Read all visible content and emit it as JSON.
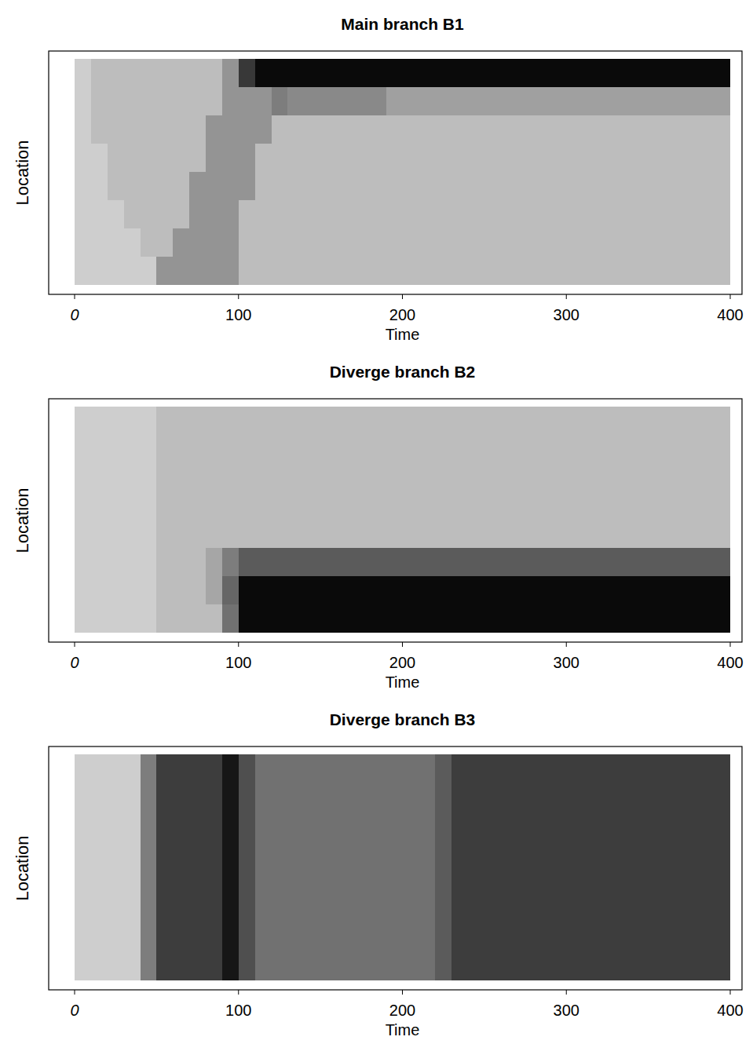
{
  "chart_data": [
    {
      "type": "heatmap",
      "title": "Main branch B1",
      "x_label": "Time",
      "y_label": "Location",
      "xlim": [
        0,
        400
      ],
      "xticks": [
        0,
        100,
        200,
        300,
        400
      ],
      "tick_labels": "x",
      "x": [
        0,
        10,
        20,
        30,
        40,
        50,
        60,
        70,
        80,
        90,
        100,
        110,
        120,
        130,
        140,
        150,
        160,
        170,
        180,
        190,
        200,
        210,
        220,
        230,
        240,
        250,
        260,
        270,
        280,
        290,
        300,
        310,
        320,
        330,
        340,
        350,
        360,
        370,
        380,
        390
      ],
      "cells": [
        [
          0.15,
          0.22,
          0.22,
          0.22,
          0.22,
          0.22,
          0.22,
          0.22,
          0.22,
          0.4,
          0.8,
          1,
          1,
          1,
          1,
          1,
          1,
          1,
          1,
          1,
          1,
          1,
          1,
          1,
          1,
          1,
          1,
          1,
          1,
          1,
          1,
          1,
          1,
          1,
          1,
          1,
          1,
          1,
          1,
          1
        ],
        [
          0.15,
          0.22,
          0.22,
          0.22,
          0.22,
          0.22,
          0.22,
          0.22,
          0.22,
          0.4,
          0.4,
          0.4,
          0.5,
          0.45,
          0.45,
          0.45,
          0.45,
          0.45,
          0.45,
          0.35,
          0.35,
          0.35,
          0.35,
          0.35,
          0.35,
          0.35,
          0.35,
          0.35,
          0.35,
          0.35,
          0.35,
          0.35,
          0.35,
          0.35,
          0.35,
          0.35,
          0.35,
          0.35,
          0.35,
          0.35
        ],
        [
          0.15,
          0.22,
          0.22,
          0.22,
          0.22,
          0.22,
          0.22,
          0.22,
          0.4,
          0.4,
          0.4,
          0.4,
          0.22,
          0.22,
          0.22,
          0.22,
          0.22,
          0.22,
          0.22,
          0.22,
          0.22,
          0.22,
          0.22,
          0.22,
          0.22,
          0.22,
          0.22,
          0.22,
          0.22,
          0.22,
          0.22,
          0.22,
          0.22,
          0.22,
          0.22,
          0.22,
          0.22,
          0.22,
          0.22,
          0.22
        ],
        [
          0.15,
          0.15,
          0.22,
          0.22,
          0.22,
          0.22,
          0.22,
          0.22,
          0.4,
          0.4,
          0.4,
          0.22,
          0.22,
          0.22,
          0.22,
          0.22,
          0.22,
          0.22,
          0.22,
          0.22,
          0.22,
          0.22,
          0.22,
          0.22,
          0.22,
          0.22,
          0.22,
          0.22,
          0.22,
          0.22,
          0.22,
          0.22,
          0.22,
          0.22,
          0.22,
          0.22,
          0.22,
          0.22,
          0.22,
          0.22
        ],
        [
          0.15,
          0.15,
          0.22,
          0.22,
          0.22,
          0.22,
          0.22,
          0.4,
          0.4,
          0.4,
          0.4,
          0.22,
          0.22,
          0.22,
          0.22,
          0.22,
          0.22,
          0.22,
          0.22,
          0.22,
          0.22,
          0.22,
          0.22,
          0.22,
          0.22,
          0.22,
          0.22,
          0.22,
          0.22,
          0.22,
          0.22,
          0.22,
          0.22,
          0.22,
          0.22,
          0.22,
          0.22,
          0.22,
          0.22,
          0.22
        ],
        [
          0.15,
          0.15,
          0.15,
          0.22,
          0.22,
          0.22,
          0.22,
          0.4,
          0.4,
          0.4,
          0.22,
          0.22,
          0.22,
          0.22,
          0.22,
          0.22,
          0.22,
          0.22,
          0.22,
          0.22,
          0.22,
          0.22,
          0.22,
          0.22,
          0.22,
          0.22,
          0.22,
          0.22,
          0.22,
          0.22,
          0.22,
          0.22,
          0.22,
          0.22,
          0.22,
          0.22,
          0.22,
          0.22,
          0.22,
          0.22
        ],
        [
          0.15,
          0.15,
          0.15,
          0.15,
          0.22,
          0.22,
          0.4,
          0.4,
          0.4,
          0.4,
          0.22,
          0.22,
          0.22,
          0.22,
          0.22,
          0.22,
          0.22,
          0.22,
          0.22,
          0.22,
          0.22,
          0.22,
          0.22,
          0.22,
          0.22,
          0.22,
          0.22,
          0.22,
          0.22,
          0.22,
          0.22,
          0.22,
          0.22,
          0.22,
          0.22,
          0.22,
          0.22,
          0.22,
          0.22,
          0.22
        ],
        [
          0.15,
          0.15,
          0.15,
          0.15,
          0.15,
          0.4,
          0.4,
          0.4,
          0.4,
          0.4,
          0.22,
          0.22,
          0.22,
          0.22,
          0.22,
          0.22,
          0.22,
          0.22,
          0.22,
          0.22,
          0.22,
          0.22,
          0.22,
          0.22,
          0.22,
          0.22,
          0.22,
          0.22,
          0.22,
          0.22,
          0.22,
          0.22,
          0.22,
          0.22,
          0.22,
          0.22,
          0.22,
          0.22,
          0.22,
          0.22
        ]
      ]
    },
    {
      "type": "heatmap",
      "title": "Diverge branch B2",
      "x_label": "Time",
      "y_label": "Location",
      "xlim": [
        0,
        400
      ],
      "xticks": [
        0,
        100,
        200,
        300,
        400
      ],
      "tick_labels": "x",
      "x": [
        0,
        10,
        20,
        30,
        40,
        50,
        60,
        70,
        80,
        90,
        100,
        110,
        120,
        130,
        140,
        150,
        160,
        170,
        180,
        190,
        200,
        210,
        220,
        230,
        240,
        250,
        260,
        270,
        280,
        290,
        300,
        310,
        320,
        330,
        340,
        350,
        360,
        370,
        380,
        390
      ],
      "cells": [
        [
          0.15,
          0.15,
          0.15,
          0.15,
          0.15,
          0.22,
          0.22,
          0.22,
          0.22,
          0.22,
          0.22,
          0.22,
          0.22,
          0.22,
          0.22,
          0.22,
          0.22,
          0.22,
          0.22,
          0.22,
          0.22,
          0.22,
          0.22,
          0.22,
          0.22,
          0.22,
          0.22,
          0.22,
          0.22,
          0.22,
          0.22,
          0.22,
          0.22,
          0.22,
          0.22,
          0.22,
          0.22,
          0.22,
          0.22,
          0.22
        ],
        [
          0.15,
          0.15,
          0.15,
          0.15,
          0.15,
          0.22,
          0.22,
          0.22,
          0.22,
          0.22,
          0.22,
          0.22,
          0.22,
          0.22,
          0.22,
          0.22,
          0.22,
          0.22,
          0.22,
          0.22,
          0.22,
          0.22,
          0.22,
          0.22,
          0.22,
          0.22,
          0.22,
          0.22,
          0.22,
          0.22,
          0.22,
          0.22,
          0.22,
          0.22,
          0.22,
          0.22,
          0.22,
          0.22,
          0.22,
          0.22
        ],
        [
          0.15,
          0.15,
          0.15,
          0.15,
          0.15,
          0.22,
          0.22,
          0.22,
          0.22,
          0.22,
          0.22,
          0.22,
          0.22,
          0.22,
          0.22,
          0.22,
          0.22,
          0.22,
          0.22,
          0.22,
          0.22,
          0.22,
          0.22,
          0.22,
          0.22,
          0.22,
          0.22,
          0.22,
          0.22,
          0.22,
          0.22,
          0.22,
          0.22,
          0.22,
          0.22,
          0.22,
          0.22,
          0.22,
          0.22,
          0.22
        ],
        [
          0.15,
          0.15,
          0.15,
          0.15,
          0.15,
          0.22,
          0.22,
          0.22,
          0.22,
          0.22,
          0.22,
          0.22,
          0.22,
          0.22,
          0.22,
          0.22,
          0.22,
          0.22,
          0.22,
          0.22,
          0.22,
          0.22,
          0.22,
          0.22,
          0.22,
          0.22,
          0.22,
          0.22,
          0.22,
          0.22,
          0.22,
          0.22,
          0.22,
          0.22,
          0.22,
          0.22,
          0.22,
          0.22,
          0.22,
          0.22
        ],
        [
          0.15,
          0.15,
          0.15,
          0.15,
          0.15,
          0.22,
          0.22,
          0.22,
          0.22,
          0.22,
          0.22,
          0.22,
          0.22,
          0.22,
          0.22,
          0.22,
          0.22,
          0.22,
          0.22,
          0.22,
          0.22,
          0.22,
          0.22,
          0.22,
          0.22,
          0.22,
          0.22,
          0.22,
          0.22,
          0.22,
          0.22,
          0.22,
          0.22,
          0.22,
          0.22,
          0.22,
          0.22,
          0.22,
          0.22,
          0.22
        ],
        [
          0.15,
          0.15,
          0.15,
          0.15,
          0.15,
          0.22,
          0.22,
          0.22,
          0.32,
          0.5,
          0.65,
          0.65,
          0.65,
          0.65,
          0.65,
          0.65,
          0.65,
          0.65,
          0.65,
          0.65,
          0.65,
          0.65,
          0.65,
          0.65,
          0.65,
          0.65,
          0.65,
          0.65,
          0.65,
          0.65,
          0.65,
          0.65,
          0.65,
          0.65,
          0.65,
          0.65,
          0.65,
          0.65,
          0.65,
          0.65
        ],
        [
          0.15,
          0.15,
          0.15,
          0.15,
          0.15,
          0.22,
          0.22,
          0.22,
          0.32,
          0.6,
          1,
          1,
          1,
          1,
          1,
          1,
          1,
          1,
          1,
          1,
          1,
          1,
          1,
          1,
          1,
          1,
          1,
          1,
          1,
          1,
          1,
          1,
          1,
          1,
          1,
          1,
          1,
          1,
          1,
          1
        ],
        [
          0.15,
          0.15,
          0.15,
          0.15,
          0.15,
          0.22,
          0.22,
          0.22,
          0.22,
          0.55,
          1,
          1,
          1,
          1,
          1,
          1,
          1,
          1,
          1,
          1,
          1,
          1,
          1,
          1,
          1,
          1,
          1,
          1,
          1,
          1,
          1,
          1,
          1,
          1,
          1,
          1,
          1,
          1,
          1,
          1
        ]
      ]
    },
    {
      "type": "heatmap",
      "title": "Diverge branch B3",
      "x_label": "Time",
      "y_label": "Location",
      "xlim": [
        0,
        400
      ],
      "xticks": [
        0,
        100,
        200,
        300,
        400
      ],
      "tick_labels": "x",
      "x": [
        0,
        10,
        20,
        30,
        40,
        50,
        60,
        70,
        80,
        90,
        100,
        110,
        120,
        130,
        140,
        150,
        160,
        170,
        180,
        190,
        200,
        210,
        220,
        230,
        240,
        250,
        260,
        270,
        280,
        290,
        300,
        310,
        320,
        330,
        340,
        350,
        360,
        370,
        380,
        390
      ],
      "cells": [
        [
          0.15,
          0.15,
          0.15,
          0.15,
          0.5,
          0.78,
          0.78,
          0.78,
          0.78,
          0.95,
          0.7,
          0.55,
          0.55,
          0.55,
          0.55,
          0.55,
          0.55,
          0.55,
          0.55,
          0.55,
          0.55,
          0.55,
          0.65,
          0.78,
          0.78,
          0.78,
          0.78,
          0.78,
          0.78,
          0.78,
          0.78,
          0.78,
          0.78,
          0.78,
          0.78,
          0.78,
          0.78,
          0.78,
          0.78,
          0.78
        ],
        [
          0.15,
          0.15,
          0.15,
          0.15,
          0.5,
          0.78,
          0.78,
          0.78,
          0.78,
          0.95,
          0.7,
          0.55,
          0.55,
          0.55,
          0.55,
          0.55,
          0.55,
          0.55,
          0.55,
          0.55,
          0.55,
          0.55,
          0.65,
          0.78,
          0.78,
          0.78,
          0.78,
          0.78,
          0.78,
          0.78,
          0.78,
          0.78,
          0.78,
          0.78,
          0.78,
          0.78,
          0.78,
          0.78,
          0.78,
          0.78
        ],
        [
          0.15,
          0.15,
          0.15,
          0.15,
          0.5,
          0.78,
          0.78,
          0.78,
          0.78,
          0.95,
          0.7,
          0.55,
          0.55,
          0.55,
          0.55,
          0.55,
          0.55,
          0.55,
          0.55,
          0.55,
          0.55,
          0.55,
          0.65,
          0.78,
          0.78,
          0.78,
          0.78,
          0.78,
          0.78,
          0.78,
          0.78,
          0.78,
          0.78,
          0.78,
          0.78,
          0.78,
          0.78,
          0.78,
          0.78,
          0.78
        ],
        [
          0.15,
          0.15,
          0.15,
          0.15,
          0.5,
          0.78,
          0.78,
          0.78,
          0.78,
          0.95,
          0.7,
          0.55,
          0.55,
          0.55,
          0.55,
          0.55,
          0.55,
          0.55,
          0.55,
          0.55,
          0.55,
          0.55,
          0.65,
          0.78,
          0.78,
          0.78,
          0.78,
          0.78,
          0.78,
          0.78,
          0.78,
          0.78,
          0.78,
          0.78,
          0.78,
          0.78,
          0.78,
          0.78,
          0.78,
          0.78
        ],
        [
          0.15,
          0.15,
          0.15,
          0.15,
          0.5,
          0.78,
          0.78,
          0.78,
          0.78,
          0.95,
          0.7,
          0.55,
          0.55,
          0.55,
          0.55,
          0.55,
          0.55,
          0.55,
          0.55,
          0.55,
          0.55,
          0.55,
          0.65,
          0.78,
          0.78,
          0.78,
          0.78,
          0.78,
          0.78,
          0.78,
          0.78,
          0.78,
          0.78,
          0.78,
          0.78,
          0.78,
          0.78,
          0.78,
          0.78,
          0.78
        ],
        [
          0.15,
          0.15,
          0.15,
          0.15,
          0.5,
          0.78,
          0.78,
          0.78,
          0.78,
          0.95,
          0.7,
          0.55,
          0.55,
          0.55,
          0.55,
          0.55,
          0.55,
          0.55,
          0.55,
          0.55,
          0.55,
          0.55,
          0.65,
          0.78,
          0.78,
          0.78,
          0.78,
          0.78,
          0.78,
          0.78,
          0.78,
          0.78,
          0.78,
          0.78,
          0.78,
          0.78,
          0.78,
          0.78,
          0.78,
          0.78
        ],
        [
          0.15,
          0.15,
          0.15,
          0.15,
          0.5,
          0.78,
          0.78,
          0.78,
          0.78,
          0.95,
          0.7,
          0.55,
          0.55,
          0.55,
          0.55,
          0.55,
          0.55,
          0.55,
          0.55,
          0.55,
          0.55,
          0.55,
          0.65,
          0.78,
          0.78,
          0.78,
          0.78,
          0.78,
          0.78,
          0.78,
          0.78,
          0.78,
          0.78,
          0.78,
          0.78,
          0.78,
          0.78,
          0.78,
          0.78,
          0.78
        ],
        [
          0.15,
          0.15,
          0.15,
          0.15,
          0.5,
          0.78,
          0.78,
          0.78,
          0.78,
          0.95,
          0.7,
          0.55,
          0.55,
          0.55,
          0.55,
          0.55,
          0.55,
          0.55,
          0.55,
          0.55,
          0.55,
          0.55,
          0.65,
          0.78,
          0.78,
          0.78,
          0.78,
          0.78,
          0.78,
          0.78,
          0.78,
          0.78,
          0.78,
          0.78,
          0.78,
          0.78,
          0.78,
          0.78,
          0.78,
          0.78
        ]
      ]
    }
  ]
}
